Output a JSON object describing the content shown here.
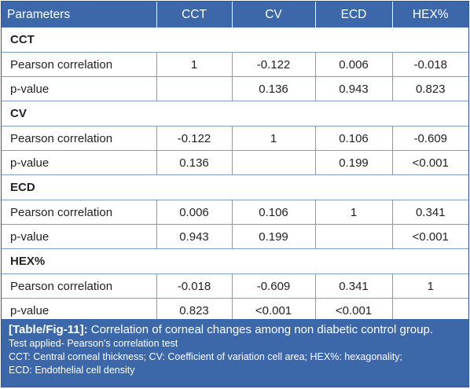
{
  "table": {
    "headers": [
      "Parameters",
      "CCT",
      "CV",
      "ECD",
      "HEX%"
    ],
    "sections": [
      {
        "title": "CCT",
        "rows": [
          {
            "label": "Pearson correlation",
            "values": [
              "1",
              "-0.122",
              "0.006",
              "-0.018"
            ]
          },
          {
            "label": "p-value",
            "values": [
              "",
              "0.136",
              "0.943",
              "0.823"
            ]
          }
        ]
      },
      {
        "title": "CV",
        "rows": [
          {
            "label": "Pearson correlation",
            "values": [
              "-0.122",
              "1",
              "0.106",
              "-0.609"
            ]
          },
          {
            "label": "p-value",
            "values": [
              "0.136",
              "",
              "0.199",
              "<0.001"
            ]
          }
        ]
      },
      {
        "title": "ECD",
        "rows": [
          {
            "label": "Pearson correlation",
            "values": [
              "0.006",
              "0.106",
              "1",
              "0.341"
            ]
          },
          {
            "label": "p-value",
            "values": [
              "0.943",
              "0.199",
              "",
              "<0.001"
            ]
          }
        ]
      },
      {
        "title": "HEX%",
        "rows": [
          {
            "label": "Pearson correlation",
            "values": [
              "-0.018",
              "-0.609",
              "0.341",
              "1"
            ]
          },
          {
            "label": "p-value",
            "values": [
              "0.823",
              "<0.001",
              "<0.001",
              ""
            ]
          }
        ]
      }
    ]
  },
  "caption": {
    "tag": "[Table/Fig-11]:",
    "title": "Correlation of corneal changes among non diabetic control group.",
    "test": "Test applied- Pearson’s correlation test",
    "abbrev1": "CCT: Central corneal thickness; CV: Coefficient of variation cell area; HEX%: hexagonality;",
    "abbrev2": "ECD: Endothelial cell density"
  },
  "colors": {
    "header_bg": "#3c67a8",
    "grid_line": "#7f9cc8",
    "text": "#222222"
  }
}
